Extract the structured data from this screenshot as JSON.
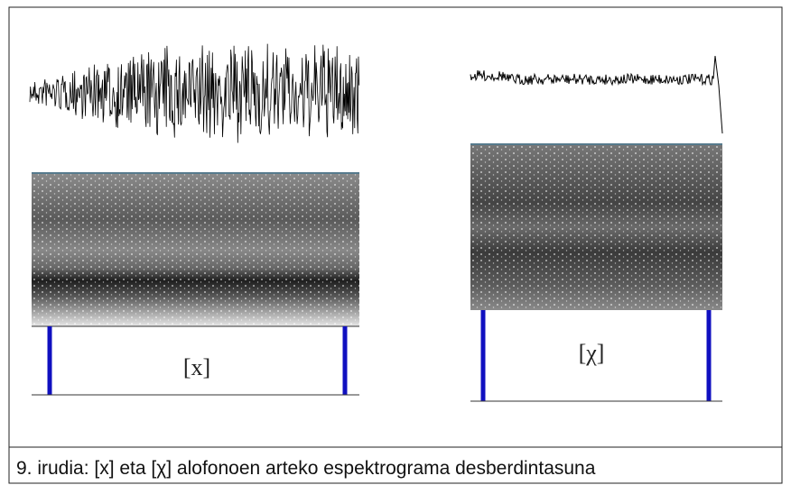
{
  "figure": {
    "panels": [
      {
        "label": "[x]"
      },
      {
        "label": "[χ]"
      }
    ],
    "caption": "9. irudia: [x] eta [χ] alofonoen arteko espektrograma desberdintasuna"
  }
}
